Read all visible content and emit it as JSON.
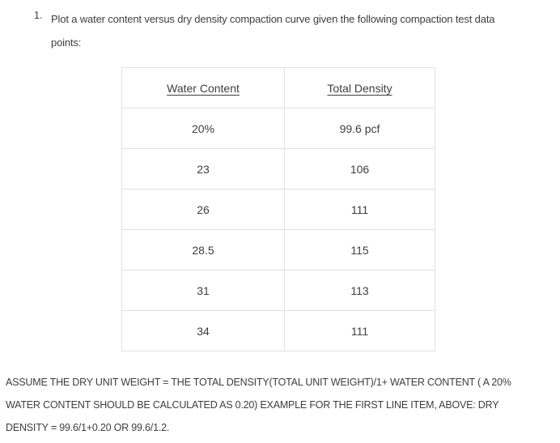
{
  "page": {
    "background_color": "#ffffff",
    "text_color": "#3e3e41",
    "table_border_color": "#e1e1e6"
  },
  "problem": {
    "number": "1.",
    "lines": [
      "Plot a water content versus dry density compaction curve given the following compaction test data",
      "points:"
    ]
  },
  "table": {
    "headers": [
      "Water Content",
      "Total Density"
    ],
    "rows": [
      {
        "water": "20%",
        "density": "99.6 pcf"
      },
      {
        "water": "23",
        "density": "106"
      },
      {
        "water": "26",
        "density": "111"
      },
      {
        "water": "28.5",
        "density": "115"
      },
      {
        "water": "31",
        "density": "113"
      },
      {
        "water": "34",
        "density": "111"
      }
    ]
  },
  "note": {
    "lines": [
      "ASSUME THE DRY UNIT WEIGHT = THE TOTAL DENSITY(TOTAL UNIT WEIGHT)/1+ WATER CONTENT ( A 20%",
      "WATER CONTENT SHOULD BE CALCULATED AS 0.20) EXAMPLE FOR THE FIRST LINE ITEM, ABOVE: DRY",
      "DENSITY = 99.6/1+0.20 OR 99.6/1.2."
    ]
  }
}
